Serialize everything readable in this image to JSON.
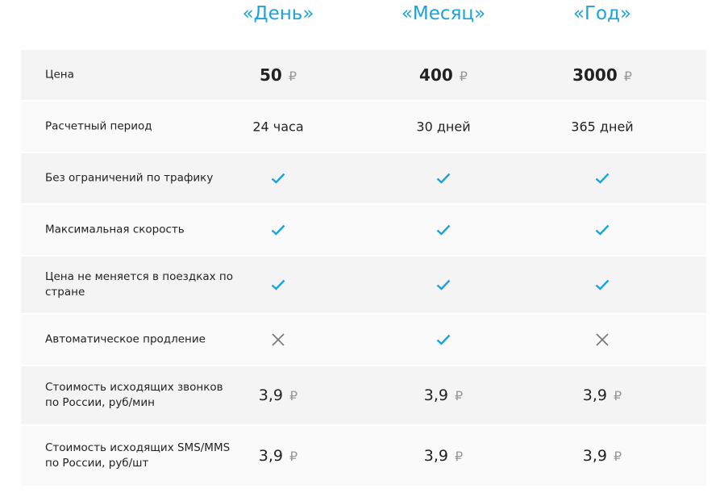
{
  "plans": [
    "«День»",
    "«Месяц»",
    "«Год»"
  ],
  "currency": "₽",
  "colors": {
    "accent": "#1aa3dc",
    "cross": "#777777"
  },
  "rows": [
    {
      "label": "Цена",
      "type": "price-bold",
      "values": [
        "50",
        "400",
        "3000"
      ]
    },
    {
      "label": "Расчетный период",
      "type": "text",
      "values": [
        "24 часа",
        "30 дней",
        "365 дней"
      ]
    },
    {
      "label": "Без ограничений по трафику",
      "type": "icon",
      "values": [
        "check",
        "check",
        "check"
      ]
    },
    {
      "label": "Максимальная скорость",
      "type": "icon",
      "values": [
        "check",
        "check",
        "check"
      ]
    },
    {
      "label": "Цена не меняется в поездках по стране",
      "type": "icon",
      "values": [
        "check",
        "check",
        "check"
      ]
    },
    {
      "label": "Автоматическое продление",
      "type": "icon",
      "values": [
        "cross",
        "check",
        "cross"
      ]
    },
    {
      "label": "Стоимость исходящих звонков по России, руб/мин",
      "type": "price",
      "values": [
        "3,9",
        "3,9",
        "3,9"
      ]
    },
    {
      "label": "Стоимость исходящих SMS/MMS по России, руб/шт",
      "type": "price",
      "values": [
        "3,9",
        "3,9",
        "3,9"
      ]
    }
  ]
}
